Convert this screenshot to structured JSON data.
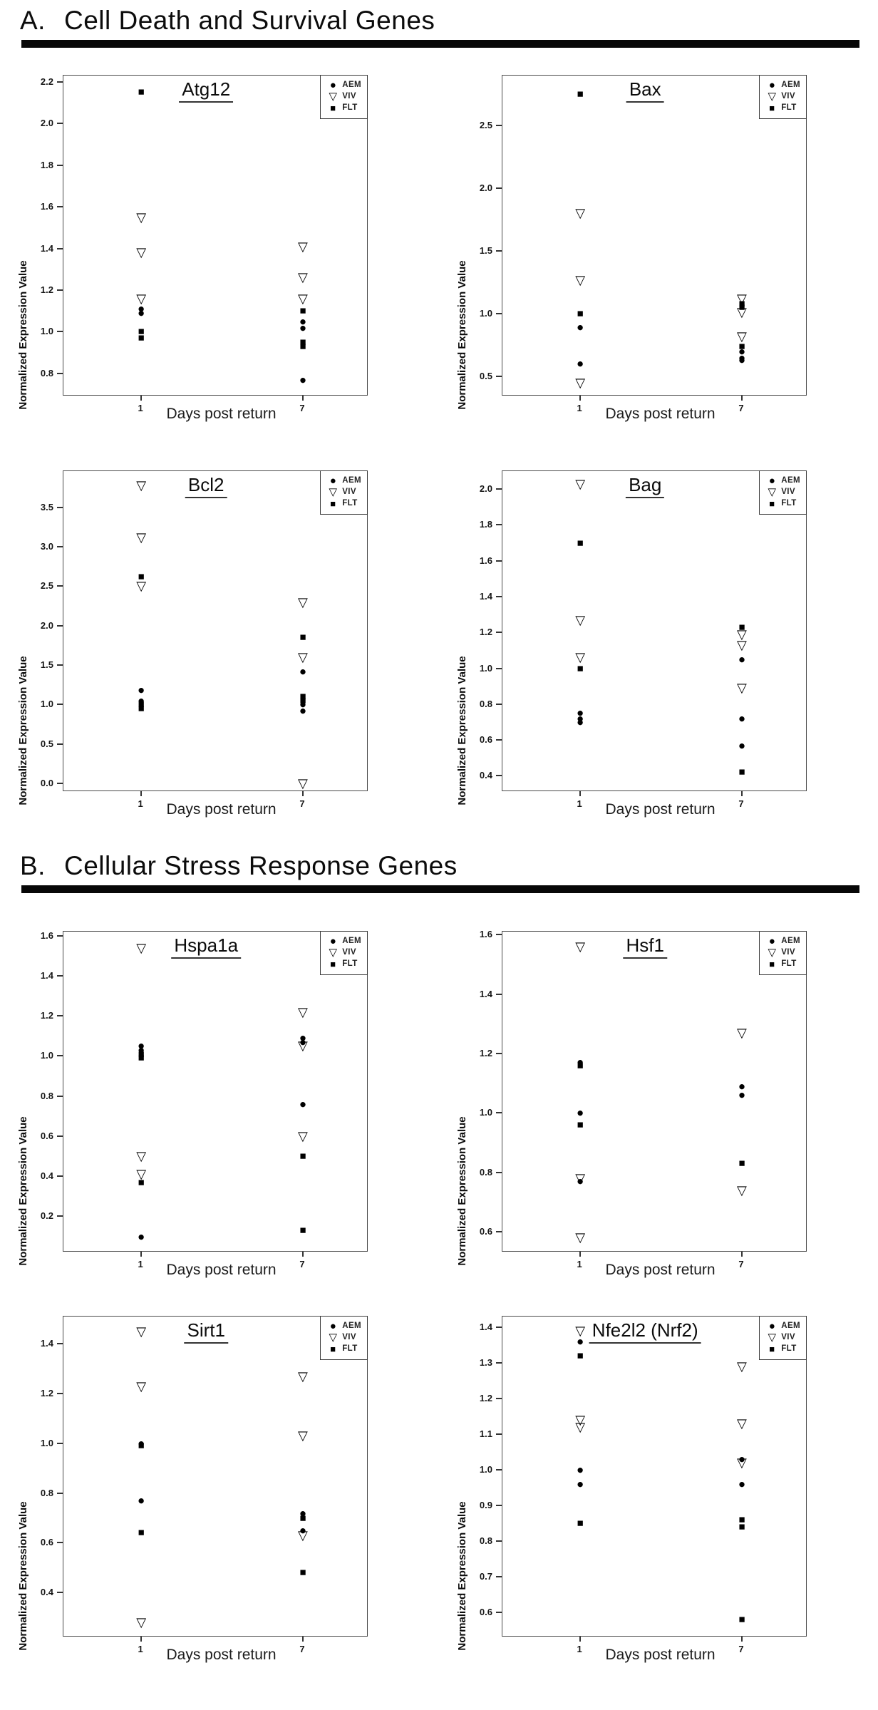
{
  "sections": [
    {
      "id": "A",
      "label": "A.",
      "title": "Cell Death and Survival Genes"
    },
    {
      "id": "B",
      "label": "B.",
      "title": "Cellular Stress Response Genes"
    }
  ],
  "legend": {
    "items": [
      {
        "name": "AEM",
        "marker": "filled-circle"
      },
      {
        "name": "VIV",
        "marker": "open-triangle-down"
      },
      {
        "name": "FLT",
        "marker": "filled-square"
      }
    ]
  },
  "colors": {
    "marker": "#000000",
    "section_bar": "#070707",
    "plot_border": "#4a4a4a"
  },
  "chart_data": [
    {
      "section": "A",
      "type": "scatter",
      "title": "Atg12",
      "xlabel": "Days post return",
      "ylabel": "Normalized Expression Value",
      "x_ticks": [
        "1",
        "7"
      ],
      "x_values": [
        1,
        7
      ],
      "ylim": [
        0.69,
        2.23
      ],
      "yticks": [
        "0.8",
        "1.0",
        "1.2",
        "1.4",
        "1.6",
        "1.8",
        "2.0",
        "2.2"
      ],
      "legend_position": "top-right",
      "grid": false,
      "series": [
        {
          "name": "AEM",
          "marker": "filled-circle",
          "points": [
            [
              1,
              1.11
            ],
            [
              1,
              1.09
            ],
            [
              7,
              1.05
            ],
            [
              7,
              1.02
            ],
            [
              7,
              0.77
            ]
          ]
        },
        {
          "name": "VIV",
          "marker": "open-triangle-down",
          "points": [
            [
              1,
              1.55
            ],
            [
              1,
              1.38
            ],
            [
              1,
              1.16
            ],
            [
              7,
              1.41
            ],
            [
              7,
              1.26
            ],
            [
              7,
              1.16
            ]
          ]
        },
        {
          "name": "FLT",
          "marker": "filled-square",
          "points": [
            [
              1,
              2.15
            ],
            [
              1,
              1.0
            ],
            [
              1,
              0.97
            ],
            [
              7,
              1.1
            ],
            [
              7,
              0.95
            ],
            [
              7,
              0.93
            ]
          ]
        }
      ]
    },
    {
      "section": "A",
      "type": "scatter",
      "title": "Bax",
      "xlabel": "Days post return",
      "ylabel": "Normalized Expression Value",
      "x_ticks": [
        "1",
        "7"
      ],
      "x_values": [
        1,
        7
      ],
      "ylim": [
        0.34,
        2.9
      ],
      "yticks": [
        "0.5",
        "1.0",
        "1.5",
        "2.0",
        "2.5"
      ],
      "legend_position": "top-right",
      "grid": false,
      "series": [
        {
          "name": "AEM",
          "marker": "filled-circle",
          "points": [
            [
              1,
              0.89
            ],
            [
              1,
              0.6
            ],
            [
              7,
              0.7
            ],
            [
              7,
              0.65
            ],
            [
              7,
              0.63
            ]
          ]
        },
        {
          "name": "VIV",
          "marker": "open-triangle-down",
          "points": [
            [
              1,
              1.8
            ],
            [
              1,
              1.27
            ],
            [
              1,
              0.45
            ],
            [
              7,
              1.12
            ],
            [
              7,
              1.01
            ],
            [
              7,
              0.82
            ]
          ]
        },
        {
          "name": "FLT",
          "marker": "filled-square",
          "points": [
            [
              1,
              2.75
            ],
            [
              1,
              1.0
            ],
            [
              7,
              1.08
            ],
            [
              7,
              1.05
            ],
            [
              7,
              0.74
            ]
          ]
        }
      ]
    },
    {
      "section": "A",
      "type": "scatter",
      "title": "Bcl2",
      "xlabel": "Days post return",
      "ylabel": "Normalized Expression Value",
      "x_ticks": [
        "1",
        "7"
      ],
      "x_values": [
        1,
        7
      ],
      "ylim": [
        -0.11,
        3.96
      ],
      "yticks": [
        "0.0",
        "0.5",
        "1.0",
        "1.5",
        "2.0",
        "2.5",
        "3.0",
        "3.5"
      ],
      "legend_position": "top-right",
      "grid": false,
      "series": [
        {
          "name": "AEM",
          "marker": "filled-circle",
          "points": [
            [
              1,
              1.18
            ],
            [
              1,
              1.05
            ],
            [
              7,
              1.42
            ],
            [
              7,
              1.0
            ],
            [
              7,
              0.92
            ]
          ]
        },
        {
          "name": "VIV",
          "marker": "open-triangle-down",
          "points": [
            [
              1,
              3.78
            ],
            [
              1,
              3.12
            ],
            [
              1,
              2.5
            ],
            [
              7,
              2.3
            ],
            [
              7,
              1.6
            ],
            [
              7,
              0.0
            ]
          ]
        },
        {
          "name": "FLT",
          "marker": "filled-square",
          "points": [
            [
              1,
              2.62
            ],
            [
              1,
              1.0
            ],
            [
              1,
              0.95
            ],
            [
              7,
              1.85
            ],
            [
              7,
              1.1
            ],
            [
              7,
              1.05
            ]
          ]
        }
      ]
    },
    {
      "section": "A",
      "type": "scatter",
      "title": "Bag",
      "xlabel": "Days post return",
      "ylabel": "Normalized Expression Value",
      "x_ticks": [
        "1",
        "7"
      ],
      "x_values": [
        1,
        7
      ],
      "ylim": [
        0.31,
        2.1
      ],
      "yticks": [
        "0.4",
        "0.6",
        "0.8",
        "1.0",
        "1.2",
        "1.4",
        "1.6",
        "1.8",
        "2.0"
      ],
      "legend_position": "top-right",
      "grid": false,
      "series": [
        {
          "name": "AEM",
          "marker": "filled-circle",
          "points": [
            [
              1,
              0.75
            ],
            [
              1,
              0.72
            ],
            [
              1,
              0.7
            ],
            [
              7,
              1.05
            ],
            [
              7,
              0.72
            ],
            [
              7,
              0.57
            ]
          ]
        },
        {
          "name": "VIV",
          "marker": "open-triangle-down",
          "points": [
            [
              1,
              2.03
            ],
            [
              1,
              1.27
            ],
            [
              1,
              1.06
            ],
            [
              7,
              1.19
            ],
            [
              7,
              1.13
            ],
            [
              7,
              0.89
            ]
          ]
        },
        {
          "name": "FLT",
          "marker": "filled-square",
          "points": [
            [
              1,
              1.7
            ],
            [
              1,
              1.0
            ],
            [
              7,
              1.23
            ],
            [
              7,
              0.42
            ]
          ]
        }
      ]
    },
    {
      "section": "B",
      "type": "scatter",
      "title": "Hspa1a",
      "xlabel": "Days post return",
      "ylabel": "Normalized Expression Value",
      "x_ticks": [
        "1",
        "7"
      ],
      "x_values": [
        1,
        7
      ],
      "ylim": [
        0.02,
        1.62
      ],
      "yticks": [
        "0.2",
        "0.4",
        "0.6",
        "0.8",
        "1.0",
        "1.2",
        "1.4",
        "1.6"
      ],
      "legend_position": "top-right",
      "grid": false,
      "series": [
        {
          "name": "AEM",
          "marker": "filled-circle",
          "points": [
            [
              1,
              1.05
            ],
            [
              1,
              1.03
            ],
            [
              1,
              0.1
            ],
            [
              7,
              1.09
            ],
            [
              7,
              1.07
            ],
            [
              7,
              0.76
            ]
          ]
        },
        {
          "name": "VIV",
          "marker": "open-triangle-down",
          "points": [
            [
              1,
              1.54
            ],
            [
              1,
              0.5
            ],
            [
              1,
              0.41
            ],
            [
              7,
              1.22
            ],
            [
              7,
              1.05
            ],
            [
              7,
              0.6
            ]
          ]
        },
        {
          "name": "FLT",
          "marker": "filled-square",
          "points": [
            [
              1,
              1.01
            ],
            [
              1,
              0.99
            ],
            [
              1,
              0.37
            ],
            [
              7,
              0.5
            ],
            [
              7,
              0.13
            ]
          ]
        }
      ]
    },
    {
      "section": "B",
      "type": "scatter",
      "title": "Hsf1",
      "xlabel": "Days post return",
      "ylabel": "Normalized Expression Value",
      "x_ticks": [
        "1",
        "7"
      ],
      "x_values": [
        1,
        7
      ],
      "ylim": [
        0.53,
        1.61
      ],
      "yticks": [
        "0.6",
        "0.8",
        "1.0",
        "1.2",
        "1.4",
        "1.6"
      ],
      "legend_position": "top-right",
      "grid": false,
      "series": [
        {
          "name": "AEM",
          "marker": "filled-circle",
          "points": [
            [
              1,
              1.17
            ],
            [
              1,
              1.0
            ],
            [
              1,
              0.77
            ],
            [
              7,
              1.09
            ],
            [
              7,
              1.06
            ]
          ]
        },
        {
          "name": "VIV",
          "marker": "open-triangle-down",
          "points": [
            [
              1,
              1.56
            ],
            [
              1,
              0.78
            ],
            [
              1,
              0.58
            ],
            [
              7,
              1.27
            ],
            [
              7,
              0.74
            ]
          ]
        },
        {
          "name": "FLT",
          "marker": "filled-square",
          "points": [
            [
              1,
              1.16
            ],
            [
              1,
              0.96
            ],
            [
              7,
              0.83
            ]
          ]
        }
      ]
    },
    {
      "section": "B",
      "type": "scatter",
      "title": "Sirt1",
      "xlabel": "Days post return",
      "ylabel": "Normalized Expression Value",
      "x_ticks": [
        "1",
        "7"
      ],
      "x_values": [
        1,
        7
      ],
      "ylim": [
        0.22,
        1.51
      ],
      "yticks": [
        "0.4",
        "0.6",
        "0.8",
        "1.0",
        "1.2",
        "1.4"
      ],
      "legend_position": "top-right",
      "grid": false,
      "series": [
        {
          "name": "AEM",
          "marker": "filled-circle",
          "points": [
            [
              1,
              1.0
            ],
            [
              1,
              0.77
            ],
            [
              7,
              0.72
            ],
            [
              7,
              0.65
            ]
          ]
        },
        {
          "name": "VIV",
          "marker": "open-triangle-down",
          "points": [
            [
              1,
              1.45
            ],
            [
              1,
              1.23
            ],
            [
              1,
              0.28
            ],
            [
              7,
              1.27
            ],
            [
              7,
              1.03
            ],
            [
              7,
              0.63
            ]
          ]
        },
        {
          "name": "FLT",
          "marker": "filled-square",
          "points": [
            [
              1,
              0.99
            ],
            [
              1,
              0.64
            ],
            [
              7,
              0.7
            ],
            [
              7,
              0.48
            ]
          ]
        }
      ]
    },
    {
      "section": "B",
      "type": "scatter",
      "title": "Nfe2l2 (Nrf2)",
      "xlabel": "Days post return",
      "ylabel": "Normalized Expression Value",
      "x_ticks": [
        "1",
        "7"
      ],
      "x_values": [
        1,
        7
      ],
      "ylim": [
        0.53,
        1.43
      ],
      "yticks": [
        "0.6",
        "0.7",
        "0.8",
        "0.9",
        "1.0",
        "1.1",
        "1.2",
        "1.3",
        "1.4"
      ],
      "legend_position": "top-right",
      "grid": false,
      "series": [
        {
          "name": "AEM",
          "marker": "filled-circle",
          "points": [
            [
              1,
              1.36
            ],
            [
              1,
              1.0
            ],
            [
              1,
              0.96
            ],
            [
              7,
              1.03
            ],
            [
              7,
              0.96
            ]
          ]
        },
        {
          "name": "VIV",
          "marker": "open-triangle-down",
          "points": [
            [
              1,
              1.39
            ],
            [
              1,
              1.14
            ],
            [
              1,
              1.12
            ],
            [
              7,
              1.29
            ],
            [
              7,
              1.13
            ],
            [
              7,
              1.02
            ]
          ]
        },
        {
          "name": "FLT",
          "marker": "filled-square",
          "points": [
            [
              1,
              1.32
            ],
            [
              1,
              0.85
            ],
            [
              7,
              0.86
            ],
            [
              7,
              0.84
            ],
            [
              7,
              0.58
            ]
          ]
        }
      ]
    }
  ]
}
